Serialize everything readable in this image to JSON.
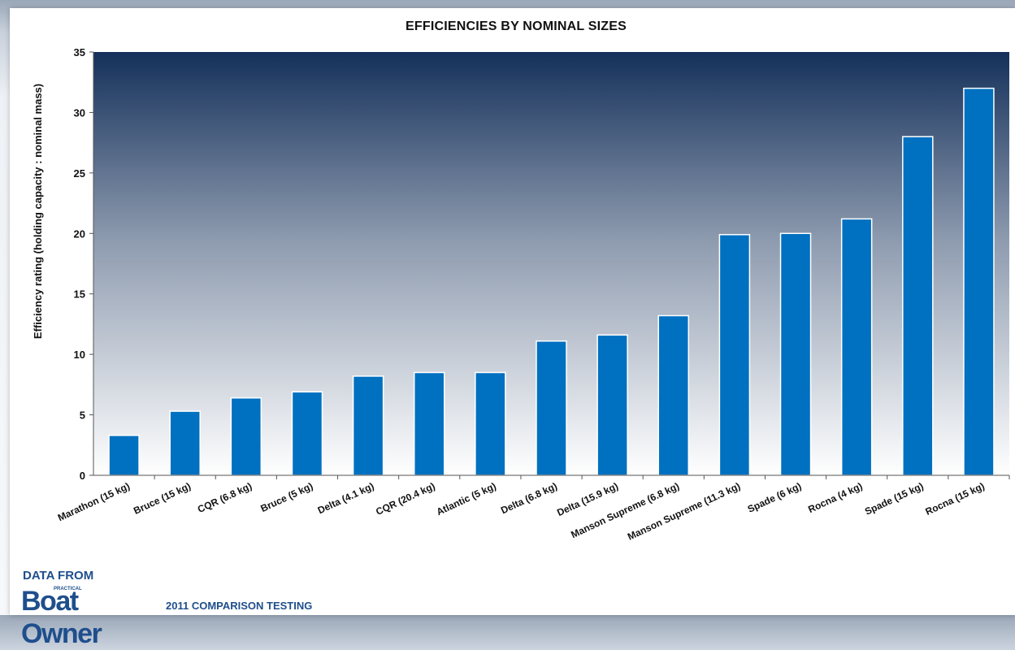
{
  "chart_data": {
    "type": "bar",
    "title": "EFFICIENCIES BY NOMINAL SIZES",
    "xlabel": "",
    "ylabel": "Efficiency rating (holding capacity : nominal mass)",
    "ylim": [
      0,
      35
    ],
    "yticks": [
      0,
      5,
      10,
      15,
      20,
      25,
      30,
      35
    ],
    "grid": false,
    "categories": [
      "Marathon (15 kg)",
      "Bruce (15 kg)",
      "CQR (6.8 kg)",
      "Bruce (5 kg)",
      "Delta (4.1 kg)",
      "CQR (20.4 kg)",
      "Atlantic (5 kg)",
      "Delta (6.8 kg)",
      "Delta (15.9 kg)",
      "Manson Supreme (6.8 kg)",
      "Manson Supreme (11.3 kg)",
      "Spade (6 kg)",
      "Rocna (4 kg)",
      "Spade (15 kg)",
      "Rocna (15 kg)"
    ],
    "values": [
      3.3,
      5.3,
      6.4,
      6.9,
      8.2,
      8.5,
      8.5,
      11.1,
      11.6,
      13.2,
      19.9,
      20.0,
      21.2,
      28.0,
      32.0
    ],
    "colors": {
      "bar": "#0070c0",
      "bar_edge": "#ffffff",
      "plot_top": "#14305a",
      "plot_bottom": "#ffffff"
    }
  },
  "footer": {
    "data_from": "DATA FROM",
    "logo_small": "PRACTICAL",
    "logo_main": "Boat Owner",
    "testing": "2011 COMPARISON TESTING",
    "text_color": "#1f4e8c"
  }
}
